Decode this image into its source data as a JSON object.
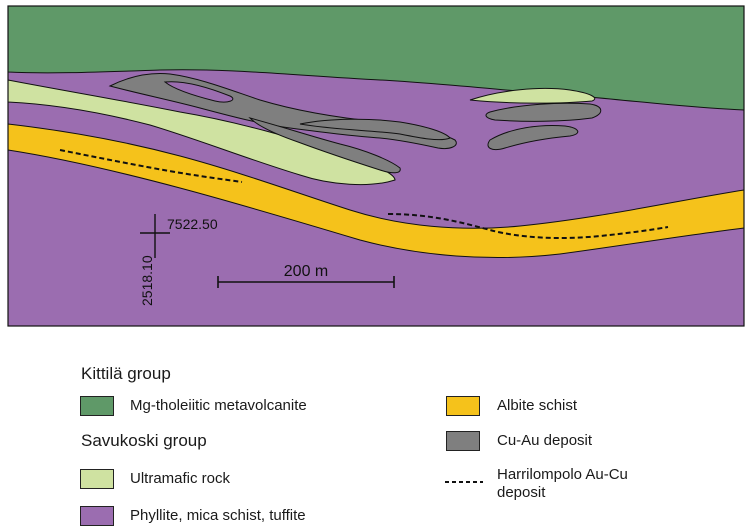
{
  "colors": {
    "mg_tholeiitic": "#5f9968",
    "ultramafic": "#cfe2a1",
    "phyllite": "#9b6db0",
    "albite": "#f5c21b",
    "cu_au": "#7f7f7f",
    "line": "#111111"
  },
  "map": {
    "coord_x": "7522.50",
    "coord_y": "2518.10",
    "scale_label": "200 m"
  },
  "legend": {
    "kittila_group": "Kittilä group",
    "savukoski_group": "Savukoski group",
    "mg_tholeiitic": "Mg-tholeiitic metavolcanite",
    "ultramafic": "Ultramafic rock",
    "phyllite": "Phyllite, mica schist, tuffite",
    "albite": "Albite schist",
    "cu_au": "Cu-Au deposit",
    "harrilompolo_line1": "Harrilompolo Au-Cu",
    "harrilompolo_line2": "deposit"
  }
}
